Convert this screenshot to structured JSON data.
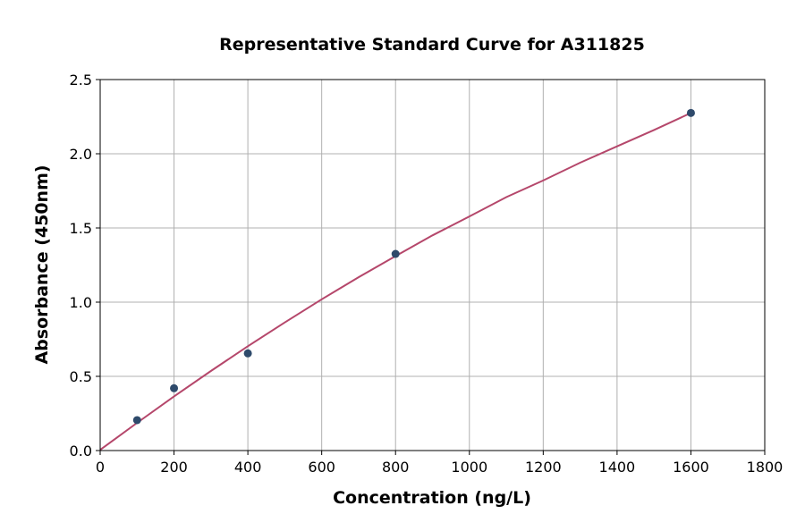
{
  "chart_data": {
    "type": "scatter",
    "title": "Representative Standard Curve for A311825",
    "xlabel": "Concentration (ng/L)",
    "ylabel": "Absorbance (450nm)",
    "xlim": [
      0,
      1800
    ],
    "ylim": [
      0,
      2.5
    ],
    "xticks": [
      0,
      200,
      400,
      600,
      800,
      1000,
      1200,
      1400,
      1600,
      1800
    ],
    "yticks": [
      "0.0",
      "0.5",
      "1.0",
      "1.5",
      "2.0",
      "2.5"
    ],
    "grid": true,
    "points": {
      "x": [
        100,
        200,
        400,
        800,
        1600
      ],
      "y": [
        0.205,
        0.42,
        0.655,
        1.325,
        2.275
      ]
    },
    "curve": {
      "x": [
        0,
        100,
        200,
        300,
        400,
        500,
        600,
        700,
        800,
        900,
        1000,
        1100,
        1200,
        1300,
        1400,
        1500,
        1600
      ],
      "y": [
        0.005,
        0.187,
        0.365,
        0.536,
        0.703,
        0.863,
        1.019,
        1.168,
        1.31,
        1.45,
        1.578,
        1.708,
        1.82,
        1.94,
        2.05,
        2.16,
        2.275
      ]
    },
    "colors": {
      "points": "#2e4a6b",
      "curve": "#b5476b",
      "grid": "#b0b0b0"
    }
  }
}
